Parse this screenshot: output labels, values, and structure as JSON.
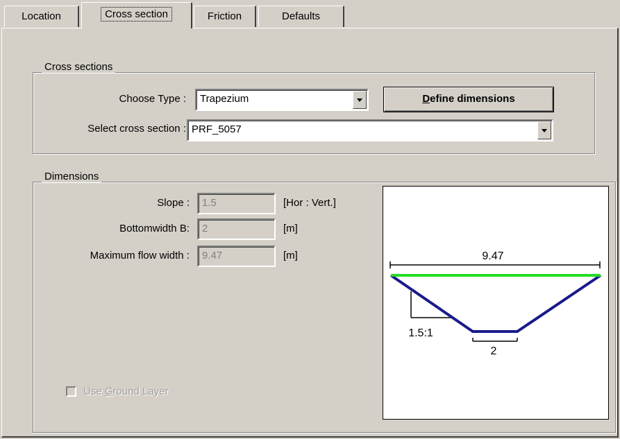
{
  "tabs": [
    "Location",
    "Cross section",
    "Friction",
    "Defaults"
  ],
  "cross_sections": {
    "title": "Cross sections",
    "choose_type": {
      "label": "Choose Type :",
      "value": "Trapezium"
    },
    "define_button": {
      "label": "Define dimensions",
      "accelerator": "D"
    },
    "select_section": {
      "label": "Select cross section :",
      "value": "PRF_5057"
    }
  },
  "dimensions": {
    "title": "Dimensions",
    "fields": [
      {
        "label": "Slope :",
        "value": "1.5",
        "unit": "[Hor : Vert.]"
      },
      {
        "label": "Bottomwidth B:",
        "value": "2",
        "unit": "[m]"
      },
      {
        "label": "Maximum flow width :",
        "value": "9.47",
        "unit": "[m]"
      }
    ],
    "use_ground_layer": {
      "label": "Use Ground Layer",
      "accelerator": "G"
    },
    "diagram": {
      "top_width_label": "9.47",
      "slope_label": "1.5:1",
      "bottom_width_label": "2"
    }
  }
}
